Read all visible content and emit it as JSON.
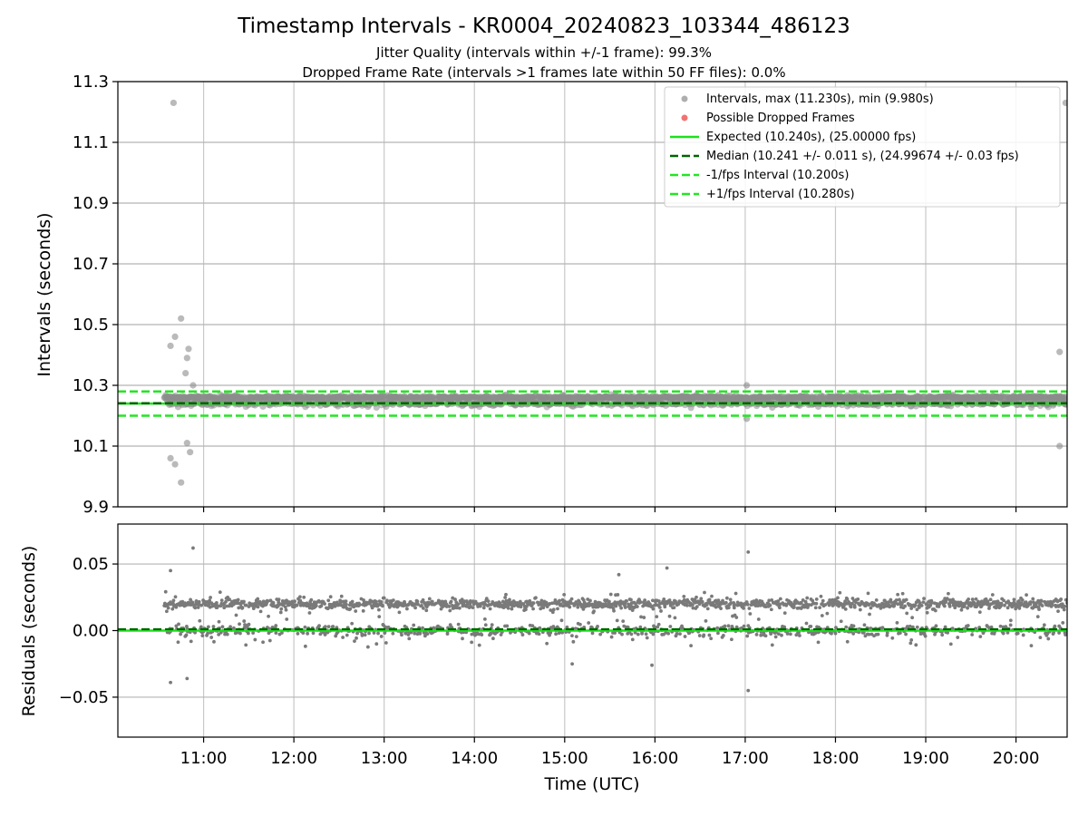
{
  "chart_data": [
    {
      "type": "scatter",
      "panel": "intervals",
      "title": "Timestamp Intervals - KR0004_20240823_103344_486123",
      "subtitle_lines": [
        "Jitter Quality (intervals within +/-1 frame): 99.3%",
        "Dropped Frame Rate (intervals >1 frames late within 50 FF files): 0.0%"
      ],
      "ylabel": "Intervals (seconds)",
      "ylim": [
        9.9,
        11.3
      ],
      "yticks": [
        "9.9",
        "10.1",
        "10.3",
        "10.5",
        "10.7",
        "10.9",
        "11.1",
        "11.3"
      ],
      "xlim": [
        "10:03",
        "20:34"
      ],
      "grid": true,
      "legend_position": "upper-right",
      "legend": [
        "Intervals, max (11.230s), min (9.980s)",
        "Possible Dropped Frames",
        "Expected (10.240s), (25.00000 fps)",
        "Median (10.241 +/- 0.011 s), (24.99674 +/- 0.03 fps)",
        "-1/fps Interval (10.200s)",
        "+1/fps Interval (10.280s)"
      ],
      "reference_lines": {
        "expected": 10.24,
        "median": 10.241,
        "minus_1_fps": 10.2,
        "plus_1_fps": 10.28
      },
      "band_interval": {
        "x_start": "10:34",
        "x_end": "20:34",
        "main_level": 10.26,
        "secondary_level": 10.24,
        "spread": 0.02
      },
      "outlier_points": [
        {
          "x": "10:40",
          "y": 11.23
        },
        {
          "x": "20:33",
          "y": 11.23
        },
        {
          "x": "10:45",
          "y": 10.52
        },
        {
          "x": "10:38",
          "y": 10.43
        },
        {
          "x": "10:41",
          "y": 10.46
        },
        {
          "x": "10:50",
          "y": 10.42
        },
        {
          "x": "10:49",
          "y": 10.39
        },
        {
          "x": "10:48",
          "y": 10.34
        },
        {
          "x": "10:53",
          "y": 10.3
        },
        {
          "x": "20:29",
          "y": 10.41
        },
        {
          "x": "10:38",
          "y": 10.06
        },
        {
          "x": "10:41",
          "y": 10.04
        },
        {
          "x": "10:49",
          "y": 10.11
        },
        {
          "x": "10:51",
          "y": 10.08
        },
        {
          "x": "10:45",
          "y": 9.98
        },
        {
          "x": "20:29",
          "y": 10.1
        },
        {
          "x": "17:01",
          "y": 10.3
        },
        {
          "x": "17:01",
          "y": 10.19
        }
      ],
      "dropped_frames": []
    },
    {
      "type": "scatter",
      "panel": "residuals",
      "ylabel": "Residuals (seconds)",
      "xlabel": "Time (UTC)",
      "ylim": [
        -0.08,
        0.08
      ],
      "yticks": [
        "−0.05",
        "0.00",
        "0.05"
      ],
      "xticks": [
        "11:00",
        "12:00",
        "13:00",
        "14:00",
        "15:00",
        "16:00",
        "17:00",
        "18:00",
        "19:00",
        "20:00"
      ],
      "xlim": [
        "10:03",
        "20:34"
      ],
      "grid": true,
      "reference_lines": {
        "zero": 0.0,
        "median_offset": 0.001
      },
      "band_residuals": {
        "x_start": "10:34",
        "x_end": "20:34",
        "main_level": 0.02,
        "secondary_level": 0.0
      },
      "outlier_points": [
        {
          "x": "10:53",
          "y": 0.062
        },
        {
          "x": "17:02",
          "y": 0.059
        },
        {
          "x": "10:38",
          "y": 0.045
        },
        {
          "x": "15:36",
          "y": 0.042
        },
        {
          "x": "16:08",
          "y": 0.047
        },
        {
          "x": "10:38",
          "y": -0.039
        },
        {
          "x": "10:49",
          "y": -0.036
        },
        {
          "x": "17:02",
          "y": -0.045
        },
        {
          "x": "15:05",
          "y": -0.025
        },
        {
          "x": "15:58",
          "y": -0.026
        }
      ]
    }
  ],
  "colors": {
    "intervals_points": "#8c8c8c",
    "dropped": "#f05a5a",
    "expected": "#1ee01e",
    "median": "#006400",
    "fps_band": "#22e622",
    "residual_points": "#7a7a7a",
    "grid": "#c8c8c8"
  }
}
